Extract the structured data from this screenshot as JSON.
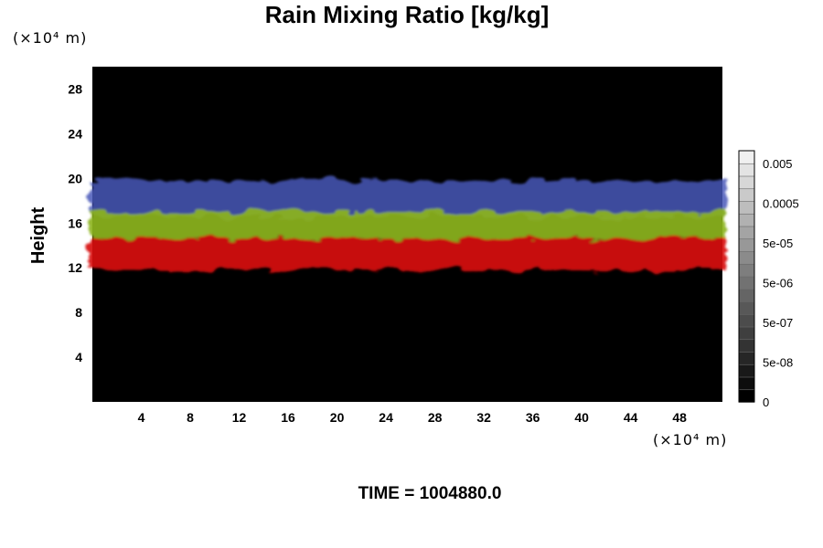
{
  "chart_data": {
    "type": "heatmap",
    "title": "Rain Mixing Ratio [kg/kg]",
    "xlabel": "",
    "ylabel": "Height",
    "x_unit": "(×10⁴ m)",
    "y_unit": "(×10⁴ m)",
    "xlim": [
      0,
      51.5
    ],
    "ylim": [
      0,
      30
    ],
    "x_ticks": [
      "4",
      "8",
      "12",
      "16",
      "20",
      "24",
      "28",
      "32",
      "36",
      "40",
      "44",
      "48"
    ],
    "y_ticks": [
      "4",
      "8",
      "12",
      "16",
      "20",
      "24",
      "28"
    ],
    "bands": [
      {
        "label": "red",
        "color": "#d81010",
        "y_bottom": 11.8,
        "y_top": 14.6
      },
      {
        "label": "green",
        "color": "#8cb41c",
        "y_bottom": 14.6,
        "y_top": 17.0
      },
      {
        "label": "blue",
        "color": "#4858b8",
        "y_bottom": 16.6,
        "y_top": 19.8
      }
    ],
    "colorbar": {
      "labels": [
        "0.005",
        "0.0005",
        "5e-05",
        "5e-06",
        "5e-07",
        "5e-08",
        "0"
      ],
      "levels": 20
    },
    "background_color": "#000000",
    "grid": false,
    "legend": "colorbar-right"
  },
  "footer": {
    "time_label": "TIME = 1004880.0"
  }
}
